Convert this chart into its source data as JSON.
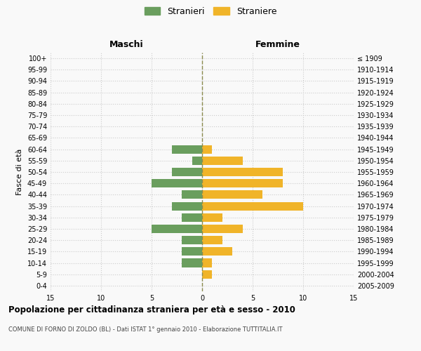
{
  "age_groups": [
    "100+",
    "95-99",
    "90-94",
    "85-89",
    "80-84",
    "75-79",
    "70-74",
    "65-69",
    "60-64",
    "55-59",
    "50-54",
    "45-49",
    "40-44",
    "35-39",
    "30-34",
    "25-29",
    "20-24",
    "15-19",
    "10-14",
    "5-9",
    "0-4"
  ],
  "birth_years": [
    "≤ 1909",
    "1910-1914",
    "1915-1919",
    "1920-1924",
    "1925-1929",
    "1930-1934",
    "1935-1939",
    "1940-1944",
    "1945-1949",
    "1950-1954",
    "1955-1959",
    "1960-1964",
    "1965-1969",
    "1970-1974",
    "1975-1979",
    "1980-1984",
    "1985-1989",
    "1990-1994",
    "1995-1999",
    "2000-2004",
    "2005-2009"
  ],
  "males": [
    0,
    0,
    0,
    0,
    0,
    0,
    0,
    0,
    3,
    1,
    3,
    5,
    2,
    3,
    2,
    5,
    2,
    2,
    2,
    0,
    0
  ],
  "females": [
    0,
    0,
    0,
    0,
    0,
    0,
    0,
    0,
    1,
    4,
    8,
    8,
    6,
    10,
    2,
    4,
    2,
    3,
    1,
    1,
    0
  ],
  "male_color": "#6a9e5e",
  "female_color": "#f0b429",
  "center_line_color": "#8b8b4e",
  "grid_color": "#cccccc",
  "background_color": "#f9f9f9",
  "title": "Popolazione per cittadinanza straniera per età e sesso - 2010",
  "subtitle": "COMUNE DI FORNO DI ZOLDO (BL) - Dati ISTAT 1° gennaio 2010 - Elaborazione TUTTITALIA.IT",
  "ylabel_left": "Fasce di età",
  "header_left": "Maschi",
  "header_right": "Femmine",
  "legend_male": "Stranieri",
  "legend_female": "Straniere",
  "xlim": 15
}
